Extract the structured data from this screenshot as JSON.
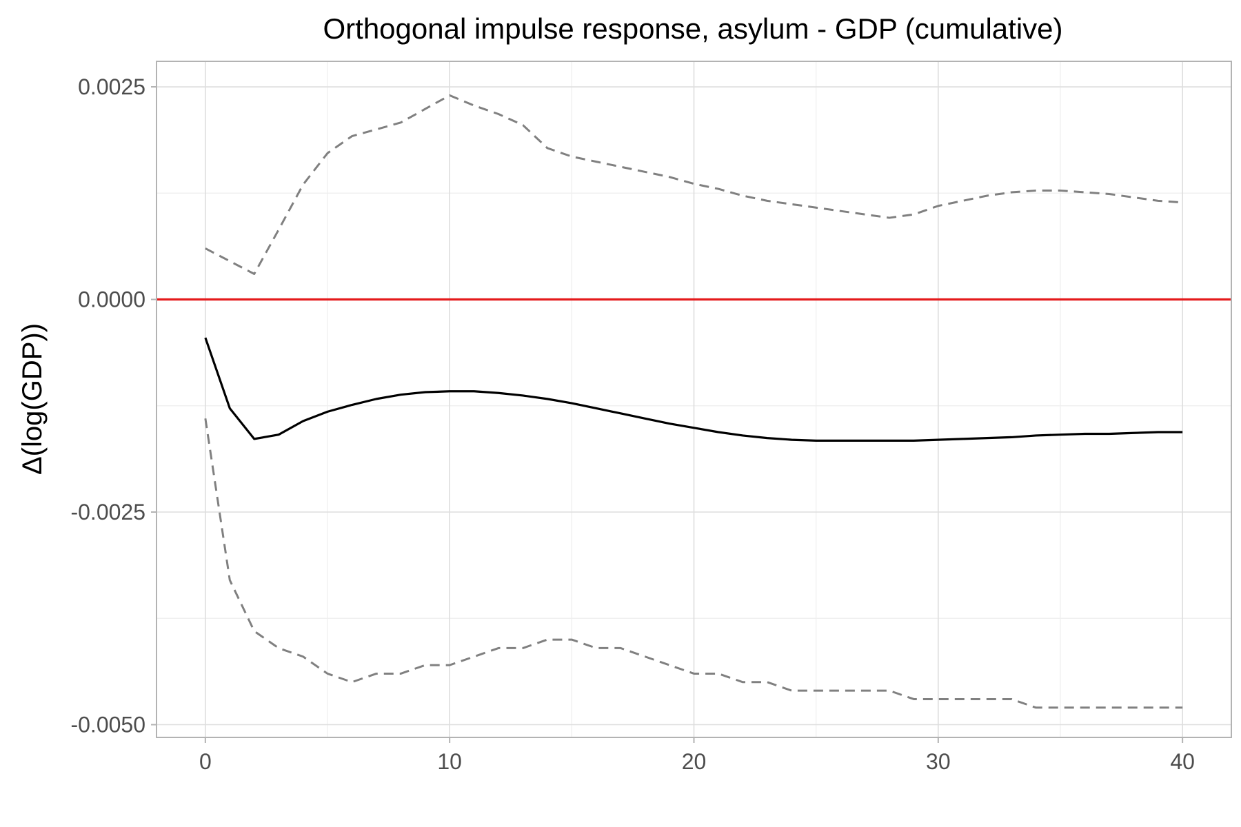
{
  "chart_data": {
    "type": "line",
    "title": "Orthogonal impulse response, asylum - GDP (cumulative)",
    "xlabel": "",
    "ylabel": "Δ(log(GDP))",
    "xlim": [
      -2,
      42
    ],
    "ylim": [
      -0.00515,
      0.0028
    ],
    "x_ticks": [
      0,
      10,
      20,
      30,
      40
    ],
    "x_tick_labels": [
      "0",
      "10",
      "20",
      "30",
      "40"
    ],
    "y_ticks": [
      -0.005,
      -0.0025,
      0.0,
      0.0025
    ],
    "y_tick_labels": [
      "-0.0050",
      "-0.0025",
      "0.0000",
      "0.0025"
    ],
    "grid": true,
    "reference_line": {
      "y": 0,
      "color": "#e41a1c"
    },
    "x": [
      0,
      1,
      2,
      3,
      4,
      5,
      6,
      7,
      8,
      9,
      10,
      11,
      12,
      13,
      14,
      15,
      16,
      17,
      18,
      19,
      20,
      21,
      22,
      23,
      24,
      25,
      26,
      27,
      28,
      29,
      30,
      31,
      32,
      33,
      34,
      35,
      36,
      37,
      38,
      39,
      40
    ],
    "series": [
      {
        "role": "response",
        "color": "#000000",
        "dash": "solid",
        "values": [
          -0.00045,
          -0.00128,
          -0.00164,
          -0.00159,
          -0.00143,
          -0.00132,
          -0.00124,
          -0.00117,
          -0.00112,
          -0.00109,
          -0.00108,
          -0.00108,
          -0.0011,
          -0.00113,
          -0.00117,
          -0.00122,
          -0.00128,
          -0.00134,
          -0.0014,
          -0.00146,
          -0.00151,
          -0.00156,
          -0.0016,
          -0.00163,
          -0.00165,
          -0.00166,
          -0.00166,
          -0.00166,
          -0.00166,
          -0.00166,
          -0.00165,
          -0.00164,
          -0.00163,
          -0.00162,
          -0.0016,
          -0.00159,
          -0.00158,
          -0.00158,
          -0.00157,
          -0.00156,
          -0.00156
        ]
      },
      {
        "role": "upper-bound",
        "color": "#808080",
        "dash": "dashed",
        "values": [
          0.0006,
          0.00045,
          0.0003,
          0.00082,
          0.00135,
          0.00172,
          0.00192,
          0.002,
          0.00208,
          0.00224,
          0.0024,
          0.00228,
          0.00218,
          0.00205,
          0.00178,
          0.00168,
          0.00162,
          0.00156,
          0.0015,
          0.00144,
          0.00136,
          0.0013,
          0.00122,
          0.00116,
          0.00112,
          0.00108,
          0.00104,
          0.001,
          0.00096,
          0.001,
          0.0011,
          0.00116,
          0.00122,
          0.00126,
          0.00128,
          0.00128,
          0.00126,
          0.00124,
          0.0012,
          0.00116,
          0.00114
        ]
      },
      {
        "role": "lower-bound",
        "color": "#808080",
        "dash": "dashed",
        "values": [
          -0.0014,
          -0.0033,
          -0.0039,
          -0.0041,
          -0.0042,
          -0.0044,
          -0.0045,
          -0.0044,
          -0.0044,
          -0.0043,
          -0.0043,
          -0.0042,
          -0.0041,
          -0.0041,
          -0.004,
          -0.004,
          -0.0041,
          -0.0041,
          -0.0042,
          -0.0043,
          -0.0044,
          -0.0044,
          -0.0045,
          -0.0045,
          -0.0046,
          -0.0046,
          -0.0046,
          -0.0046,
          -0.0046,
          -0.0047,
          -0.0047,
          -0.0047,
          -0.0047,
          -0.0047,
          -0.0048,
          -0.0048,
          -0.0048,
          -0.0048,
          -0.0048,
          -0.0048,
          -0.0048
        ]
      }
    ]
  }
}
